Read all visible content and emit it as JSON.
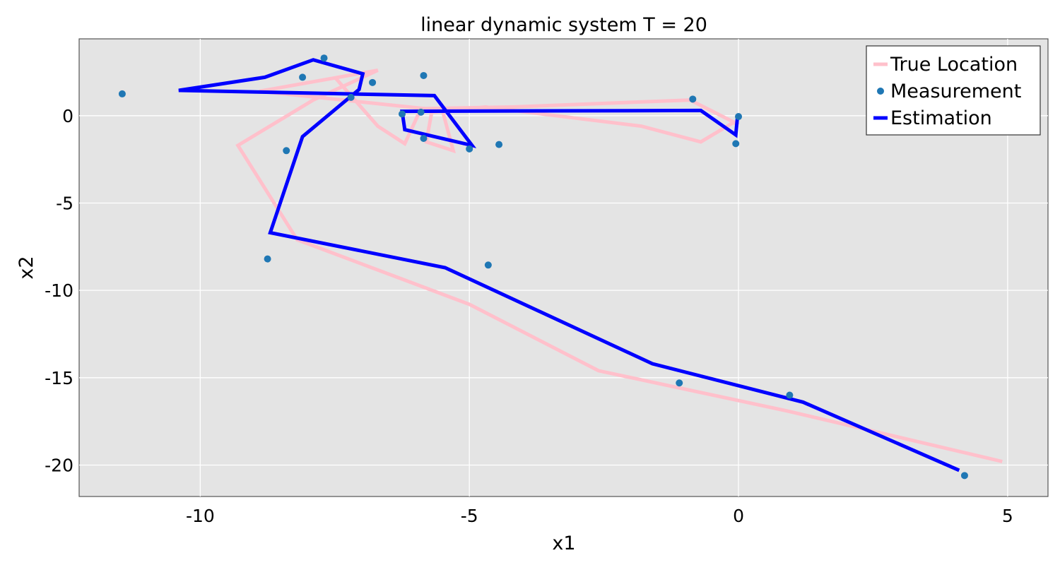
{
  "chart_data": {
    "type": "line",
    "title": "linear dynamic system T = 20",
    "xlabel": "x1",
    "ylabel": "x2",
    "xlim": [
      -12.25,
      5.75
    ],
    "ylim": [
      -21.8,
      4.4
    ],
    "grid": true,
    "legend_placement": "top-right",
    "x_ticks": [
      -10,
      -5,
      0,
      5
    ],
    "y_ticks": [
      0,
      -5,
      -10,
      -15,
      -20
    ],
    "background_color": "#e4e4e4",
    "series": [
      {
        "name": "True Location",
        "kind": "line",
        "color": "#ffc0cb",
        "points": [
          [
            4.9,
            -19.8
          ],
          [
            0.9,
            -16.9
          ],
          [
            -2.6,
            -14.6
          ],
          [
            -5.0,
            -10.8
          ],
          [
            -8.2,
            -7.1
          ],
          [
            -9.3,
            -1.7
          ],
          [
            -7.9,
            0.9
          ],
          [
            -6.7,
            2.6
          ],
          [
            -8.9,
            1.4
          ],
          [
            -5.5,
            0.3
          ],
          [
            -5.3,
            -2.0
          ],
          [
            -5.8,
            -1.5
          ],
          [
            -5.7,
            0.2
          ],
          [
            -4.7,
            0.5
          ],
          [
            -1.8,
            -0.6
          ],
          [
            -0.7,
            -1.5
          ],
          [
            -0.1,
            -0.4
          ],
          [
            0.0,
            -0.5
          ],
          [
            -0.9,
            0.9
          ],
          [
            -4.2,
            0.5
          ],
          [
            -5.9,
            0.4
          ],
          [
            -6.2,
            -1.6
          ],
          [
            -6.7,
            -0.6
          ],
          [
            -7.5,
            2.2
          ]
        ]
      },
      {
        "name": "Measurement",
        "kind": "scatter",
        "color": "#1f77b4",
        "points": [
          [
            4.2,
            -20.6
          ],
          [
            0.95,
            -16.0
          ],
          [
            -1.1,
            -15.3
          ],
          [
            -4.65,
            -8.55
          ],
          [
            -8.75,
            -8.2
          ],
          [
            -8.4,
            -2.0
          ],
          [
            -7.7,
            3.3
          ],
          [
            -8.1,
            2.2
          ],
          [
            -6.8,
            1.9
          ],
          [
            -7.2,
            1.05
          ],
          [
            -11.45,
            1.25
          ],
          [
            -5.85,
            2.3
          ],
          [
            -6.25,
            0.1
          ],
          [
            -5.9,
            0.2
          ],
          [
            -5.85,
            -1.3
          ],
          [
            -5.0,
            -1.9
          ],
          [
            -4.45,
            -1.65
          ],
          [
            -0.85,
            0.95
          ],
          [
            0.0,
            -0.05
          ],
          [
            -0.05,
            -1.6
          ]
        ]
      },
      {
        "name": "Estimation",
        "kind": "line",
        "color": "#0000ff",
        "points": [
          [
            4.1,
            -20.3
          ],
          [
            1.2,
            -16.4
          ],
          [
            -1.6,
            -14.2
          ],
          [
            -5.45,
            -8.7
          ],
          [
            -8.7,
            -6.7
          ],
          [
            -8.1,
            -1.2
          ],
          [
            -7.05,
            1.5
          ],
          [
            -6.98,
            2.4
          ],
          [
            -7.9,
            3.2
          ],
          [
            -8.8,
            2.2
          ],
          [
            -10.4,
            1.45
          ],
          [
            -5.65,
            1.15
          ],
          [
            -4.95,
            -1.7
          ],
          [
            -6.2,
            -0.8
          ],
          [
            -6.25,
            0.25
          ],
          [
            -0.7,
            0.3
          ],
          [
            -0.05,
            -1.1
          ],
          [
            -0.02,
            -0.1
          ]
        ]
      }
    ]
  }
}
